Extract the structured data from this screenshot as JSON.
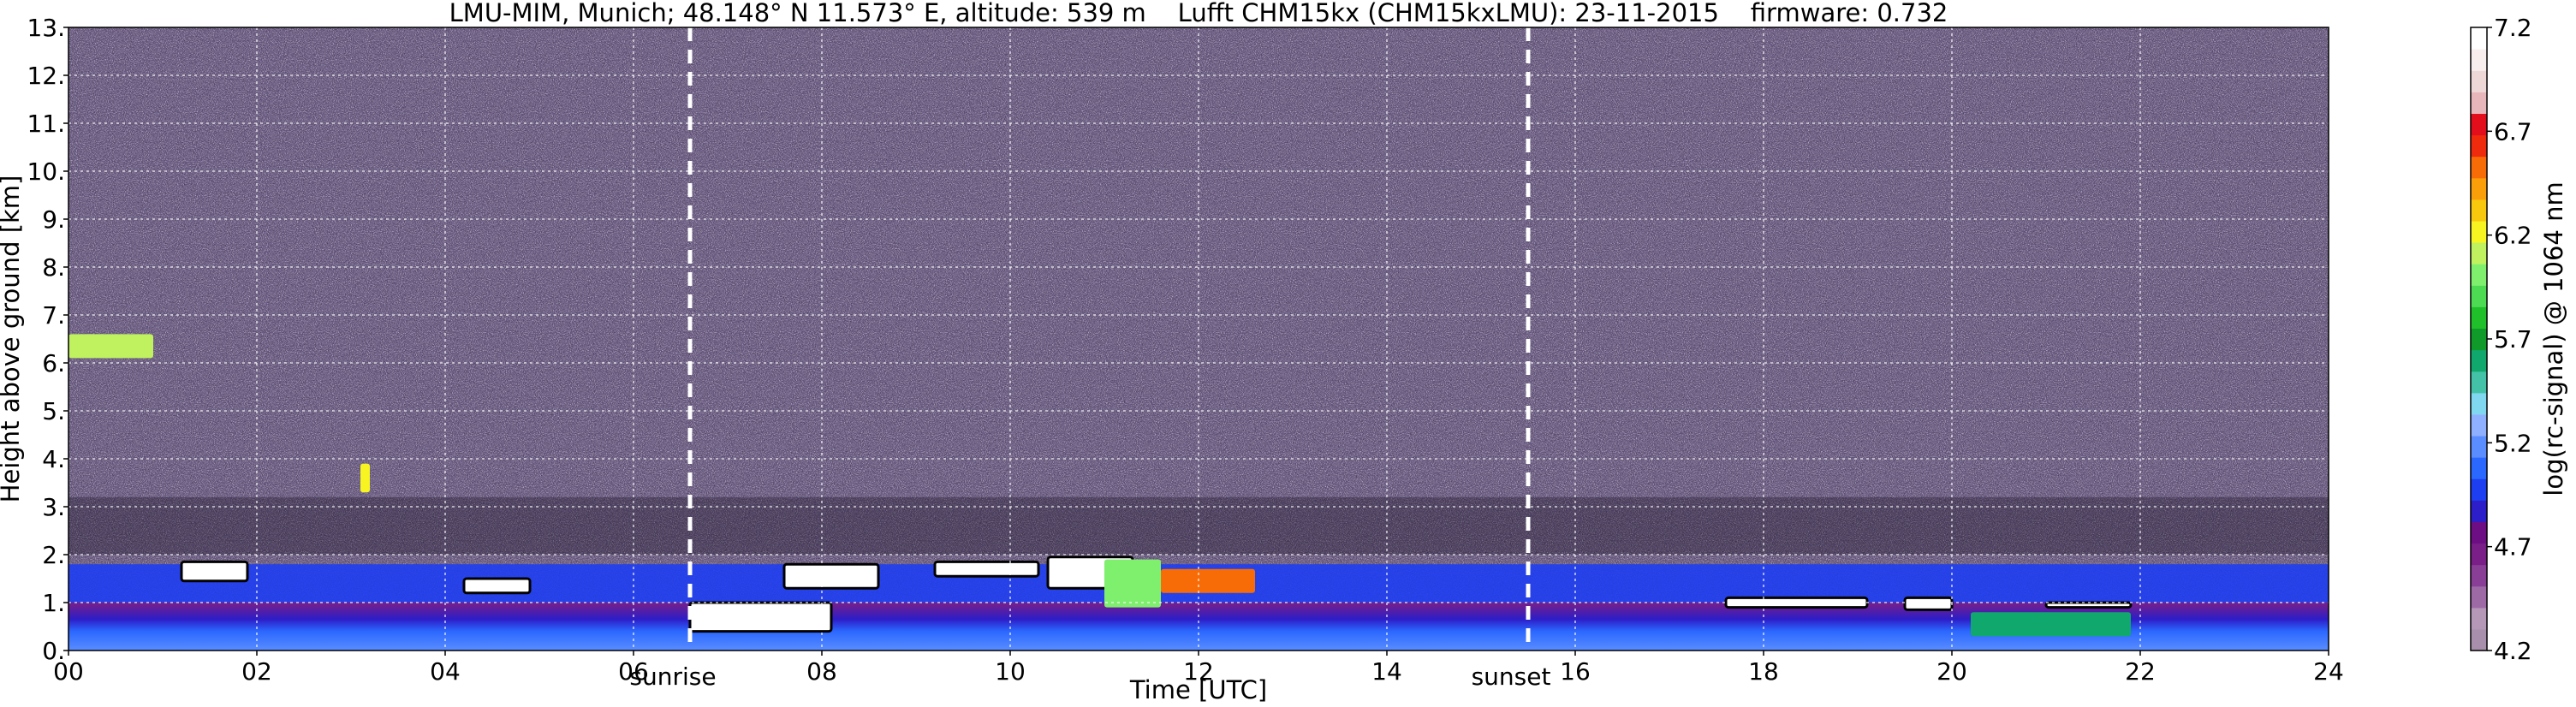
{
  "chart_data": {
    "type": "heatmap",
    "title": "LMU-MIM, Munich; 48.148° N 11.573° E, altitude: 539 m    Lufft CHM15kx (CHM15kxLMU): 23-11-2015    firmware: 0.732",
    "xlabel": "Time [UTC]",
    "ylabel": "Height above ground [km]",
    "colorbar_label": "log(rc-signal) @ 1064 nm",
    "xlim": [
      0,
      24
    ],
    "ylim": [
      0,
      13
    ],
    "x_ticks": [
      "00",
      "02",
      "04",
      "06",
      "08",
      "10",
      "12",
      "14",
      "16",
      "18",
      "20",
      "22",
      "24"
    ],
    "y_ticks": [
      "0.",
      "1.",
      "2.",
      "3.",
      "4.",
      "5.",
      "6.",
      "7.",
      "8.",
      "9.",
      "10.",
      "11.",
      "12.",
      "13."
    ],
    "colorbar_range": [
      4.2,
      7.2
    ],
    "colorbar_ticks": [
      "4.2",
      "4.7",
      "5.2",
      "5.7",
      "6.2",
      "6.7",
      "7.2"
    ],
    "grid": true,
    "markers": [
      {
        "label": "sunrise",
        "time": 6.6
      },
      {
        "label": "sunset",
        "time": 15.5
      }
    ],
    "colors": {
      "background_noise": "#6a5a82",
      "boundary_layer": "#8a2b9c",
      "near_surface": "#3a6cf0",
      "cloud": "#ffffff",
      "grid": "#ffffff"
    },
    "colormap": [
      "#a890ac",
      "#b598b7",
      "#9e6aa6",
      "#8a3f97",
      "#7a1f87",
      "#6d0e84",
      "#2c1ec8",
      "#1e3ef2",
      "#2b68ff",
      "#5a8dff",
      "#8fb0ff",
      "#7fd8f0",
      "#43c2a8",
      "#10a86c",
      "#0f9a29",
      "#1fc02a",
      "#4cdb53",
      "#7ff06e",
      "#bff25e",
      "#f7f422",
      "#f8c80f",
      "#fa9e0a",
      "#f86c08",
      "#ef2b0d",
      "#e20e1c",
      "#e7b6bb",
      "#eed7d7",
      "#f8eeee",
      "#ffffff"
    ],
    "layers": [
      {
        "name": "noise",
        "x_range": [
          0,
          24
        ],
        "y_range": [
          2,
          13
        ],
        "value": 4.6
      },
      {
        "name": "boundary layer",
        "x_range": [
          0,
          24
        ],
        "y_range": [
          1.0,
          1.8
        ],
        "value": 5.0
      },
      {
        "name": "surface layer",
        "x_range": [
          0,
          24
        ],
        "y_range": [
          0,
          1.0
        ],
        "value": 5.4
      }
    ],
    "features": [
      {
        "x": [
          0,
          0.9
        ],
        "y": [
          6.1,
          6.6
        ],
        "value": 6.1
      },
      {
        "x": [
          1.2,
          1.9
        ],
        "y": [
          1.45,
          1.85
        ],
        "value": 7.2
      },
      {
        "x": [
          3.1,
          3.2
        ],
        "y": [
          3.3,
          3.9
        ],
        "value": 6.2
      },
      {
        "x": [
          4.2,
          4.9
        ],
        "y": [
          1.2,
          1.5
        ],
        "value": 7.2
      },
      {
        "x": [
          6.6,
          8.1
        ],
        "y": [
          0.4,
          1.0
        ],
        "value": 7.2
      },
      {
        "x": [
          7.6,
          8.6
        ],
        "y": [
          1.3,
          1.8
        ],
        "value": 7.2
      },
      {
        "x": [
          9.2,
          10.3
        ],
        "y": [
          1.55,
          1.85
        ],
        "value": 7.2
      },
      {
        "x": [
          10.4,
          11.3
        ],
        "y": [
          1.3,
          1.95
        ],
        "value": 7.2
      },
      {
        "x": [
          11.0,
          11.6
        ],
        "y": [
          0.9,
          1.9
        ],
        "value": 6.0
      },
      {
        "x": [
          11.6,
          12.6
        ],
        "y": [
          1.2,
          1.7
        ],
        "value": 6.5
      },
      {
        "x": [
          17.6,
          19.1
        ],
        "y": [
          0.9,
          1.1
        ],
        "value": 7.2
      },
      {
        "x": [
          19.5,
          20.0
        ],
        "y": [
          0.85,
          1.1
        ],
        "value": 7.2
      },
      {
        "x": [
          20.2,
          21.9
        ],
        "y": [
          0.3,
          0.8
        ],
        "value": 5.6
      },
      {
        "x": [
          21.0,
          21.9
        ],
        "y": [
          0.9,
          1.0
        ],
        "value": 7.2
      }
    ]
  }
}
